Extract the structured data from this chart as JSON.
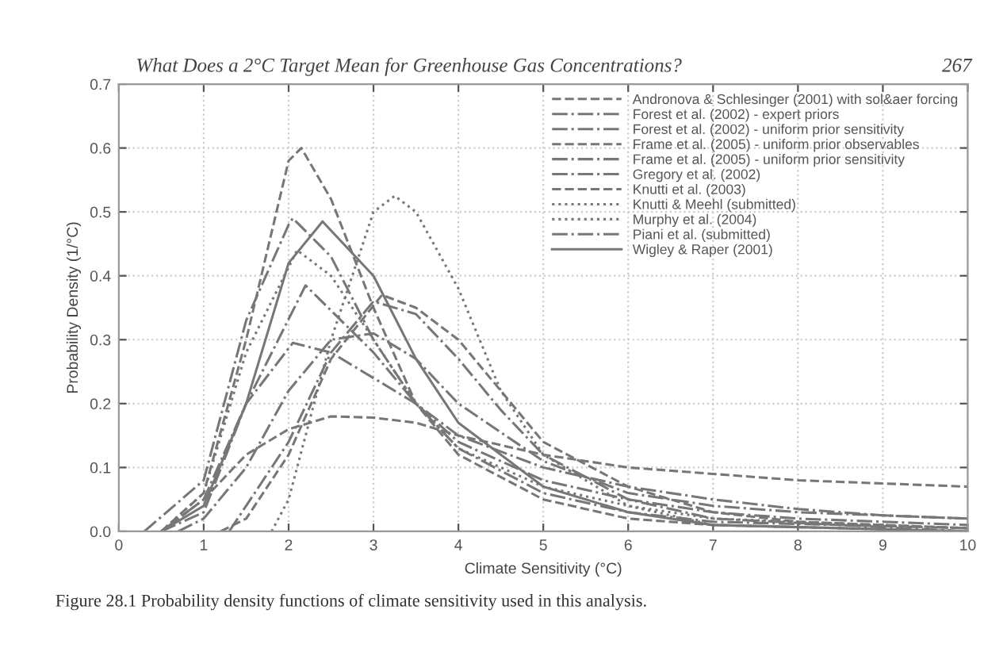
{
  "chart_data": {
    "type": "line",
    "title": "What Does a 2°C Target Mean for Greenhouse Gas Concentrations?",
    "xlabel": "Climate Sensitivity (°C)",
    "ylabel": "Probability Density (1/°C)",
    "annotations": [
      "267",
      "Figure 28.1 Probability density functions of climate sensitivity used in this analysis."
    ],
    "xlim": [
      0,
      10
    ],
    "ylim": [
      0,
      0.7
    ],
    "xticks": [
      0,
      1,
      2,
      3,
      4,
      5,
      6,
      7,
      8,
      9,
      10
    ],
    "yticks": [
      {
        "value": 0,
        "label": "0.0"
      },
      0.1,
      0.2,
      0.3,
      0.4,
      0.5,
      0.6,
      0.7
    ],
    "grid": true,
    "legend": "top right",
    "marker": "none",
    "series": [
      {
        "name": "Andronova & Schlesinger (2001) with sol&aer forcing",
        "color": "#777777",
        "line_style": "dashed",
        "x": [
          1.2,
          1.5,
          2,
          2.5,
          3.1,
          3.5,
          4,
          4.5,
          5,
          6,
          7,
          8,
          10
        ],
        "values": [
          0,
          0.02,
          0.12,
          0.27,
          0.37,
          0.35,
          0.3,
          0.22,
          0.14,
          0.07,
          0.03,
          0.015,
          0.005
        ]
      },
      {
        "name": "Forest et al. (2002) - expert priors",
        "color": "#777777",
        "line_style": "dashdot",
        "x": [
          0.3,
          1,
          1.5,
          2,
          2.05,
          2.5,
          3,
          3.5,
          4,
          5,
          6,
          7,
          10
        ],
        "values": [
          0,
          0.08,
          0.33,
          0.48,
          0.49,
          0.43,
          0.3,
          0.2,
          0.13,
          0.06,
          0.03,
          0.015,
          0.005
        ]
      },
      {
        "name": "Forest et al. (2002) - uniform prior sensitivity",
        "color": "#777777",
        "line_style": "dashdot",
        "x": [
          1.3,
          2,
          2.5,
          3,
          3.5,
          4,
          4.5,
          5,
          6,
          7,
          10
        ],
        "values": [
          0,
          0.14,
          0.28,
          0.36,
          0.34,
          0.27,
          0.19,
          0.12,
          0.05,
          0.02,
          0
        ]
      },
      {
        "name": "Frame et al. (2005) - uniform prior observables",
        "color": "#777777",
        "line_style": "dashed",
        "x": [
          0.5,
          1,
          1.5,
          2,
          2.15,
          2.5,
          3,
          3.5,
          4,
          5,
          6,
          7,
          10
        ],
        "values": [
          0,
          0.06,
          0.3,
          0.58,
          0.6,
          0.52,
          0.35,
          0.2,
          0.12,
          0.05,
          0.02,
          0.01,
          0
        ]
      },
      {
        "name": "Frame et al. (2005) - uniform prior sensitivity",
        "color": "#777777",
        "line_style": "dashdot",
        "x": [
          0.5,
          1,
          1.5,
          2.05,
          2.5,
          3,
          3.5,
          4,
          5,
          6,
          7,
          8,
          9,
          10
        ],
        "values": [
          0,
          0.05,
          0.2,
          0.295,
          0.28,
          0.24,
          0.2,
          0.15,
          0.1,
          0.07,
          0.05,
          0.035,
          0.025,
          0.02
        ]
      },
      {
        "name": "Gregory et al. (2002)",
        "color": "#777777",
        "line_style": "dashdot",
        "x": [
          0.5,
          1,
          1.5,
          2.2,
          3,
          3.5,
          4,
          5,
          6,
          7,
          8,
          10
        ],
        "values": [
          0,
          0.03,
          0.2,
          0.385,
          0.28,
          0.2,
          0.14,
          0.08,
          0.05,
          0.03,
          0.02,
          0.01
        ]
      },
      {
        "name": "Knutti et al. (2003)",
        "color": "#777777",
        "line_style": "dashed",
        "x": [
          0.5,
          1,
          1.5,
          2,
          2.5,
          3,
          3.5,
          4,
          5,
          6,
          7,
          8,
          9,
          10
        ],
        "values": [
          0,
          0.05,
          0.12,
          0.16,
          0.18,
          0.178,
          0.17,
          0.15,
          0.12,
          0.1,
          0.09,
          0.08,
          0.075,
          0.07
        ]
      },
      {
        "name": "Knutti & Meehl (submitted)",
        "color": "#777777",
        "line_style": "dotted",
        "x": [
          1.8,
          2,
          2.5,
          3,
          3.25,
          3.5,
          4,
          4.5,
          5,
          6,
          7,
          10
        ],
        "values": [
          0,
          0.05,
          0.3,
          0.5,
          0.525,
          0.5,
          0.38,
          0.22,
          0.12,
          0.04,
          0.01,
          0
        ]
      },
      {
        "name": "Murphy et al. (2004)",
        "color": "#777777",
        "line_style": "dotted",
        "x": [
          0.5,
          1,
          1.5,
          2.1,
          2.5,
          3,
          3.5,
          4,
          5,
          6,
          7,
          10
        ],
        "values": [
          0,
          0.06,
          0.28,
          0.44,
          0.4,
          0.3,
          0.2,
          0.13,
          0.07,
          0.04,
          0.02,
          0.005
        ]
      },
      {
        "name": "Piani et al. (submitted)",
        "color": "#777777",
        "line_style": "dashdot",
        "x": [
          0.7,
          1,
          1.5,
          2,
          2.5,
          3,
          3.5,
          4,
          5,
          6,
          7,
          8,
          10
        ],
        "values": [
          0,
          0.02,
          0.1,
          0.22,
          0.3,
          0.31,
          0.27,
          0.2,
          0.11,
          0.06,
          0.04,
          0.03,
          0.02
        ]
      },
      {
        "name": "Wigley & Raper (2001)",
        "color": "#777777",
        "line_style": "solid",
        "x": [
          0.5,
          1,
          1.5,
          2,
          2.4,
          3,
          3.5,
          4,
          5,
          6,
          7,
          10
        ],
        "values": [
          0,
          0.04,
          0.2,
          0.42,
          0.485,
          0.4,
          0.27,
          0.17,
          0.07,
          0.03,
          0.01,
          0
        ]
      }
    ]
  }
}
